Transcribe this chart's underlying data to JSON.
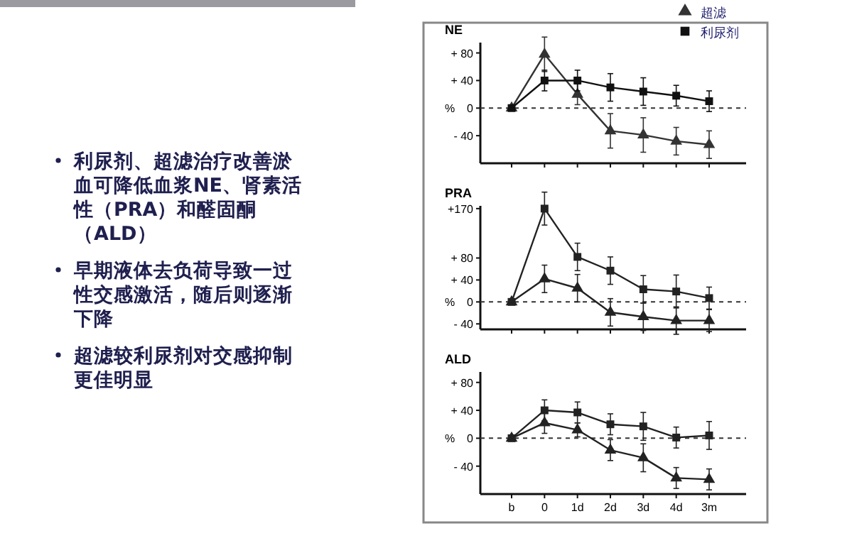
{
  "chart_data": [
    {
      "type": "other",
      "annotations": [
        "利尿剂、超滤治疗改善淤血可降低血浆NE、肾素活性（PRA）和醛固酮（ALD）",
        "早期液体去负荷导致一过性交感激活，随后则逐渐下降",
        "超滤较利尿剂对交感抑制更佳明显"
      ]
    },
    {
      "type": "line",
      "title": "NE",
      "ylabel": "%",
      "categories": [
        null,
        null,
        null,
        null,
        null,
        null,
        null
      ],
      "ylim": [
        -80,
        95
      ],
      "yticks": [
        {
          "value": -40,
          "label": "- 40"
        },
        {
          "value": 0,
          "label": "0"
        },
        {
          "value": 40,
          "label": "+ 40"
        },
        {
          "value": 80,
          "label": "+ 80"
        }
      ],
      "legend": "top right",
      "ref_lines": [
        {
          "axis": "y",
          "value": 0,
          "line_style": "dashed"
        }
      ],
      "series": [
        {
          "name": "超滤",
          "color": "#333333",
          "marker": "triangle",
          "values": [
            0,
            78,
            20,
            -33,
            -39,
            -48,
            -53
          ],
          "errors": [
            null,
            25,
            15,
            25,
            25,
            20,
            20
          ]
        },
        {
          "name": "利尿剂",
          "color": "#111111",
          "marker": "square",
          "values": [
            0,
            40,
            40,
            30,
            24,
            18,
            10
          ],
          "errors": [
            null,
            15,
            15,
            20,
            20,
            15,
            15
          ]
        }
      ]
    },
    {
      "type": "line",
      "title": "PRA",
      "ylabel": "%",
      "categories": [
        null,
        null,
        null,
        null,
        null,
        null,
        null
      ],
      "ylim": [
        -50,
        175
      ],
      "yticks": [
        {
          "value": -40,
          "label": "- 40"
        },
        {
          "value": 0,
          "label": "0"
        },
        {
          "value": 40,
          "label": "+ 40"
        },
        {
          "value": 80,
          "label": "+ 80"
        },
        {
          "value": 170,
          "label": "+170"
        }
      ],
      "ref_lines": [
        {
          "axis": "y",
          "value": 0,
          "line_style": "dashed"
        }
      ],
      "series": [
        {
          "color": "#222222",
          "marker": "triangle",
          "values": [
            0,
            42,
            25,
            -19,
            -27,
            -34,
            -34
          ],
          "errors": [
            null,
            25,
            25,
            25,
            25,
            25,
            20
          ]
        },
        {
          "color": "#222222",
          "marker": "square",
          "values": [
            0,
            170,
            82,
            57,
            23,
            19,
            7
          ],
          "errors": [
            null,
            30,
            25,
            25,
            25,
            30,
            20
          ]
        }
      ]
    },
    {
      "type": "line",
      "title": "ALD",
      "ylabel": "%",
      "categories": [
        "b",
        "0",
        "1d",
        "2d",
        "3d",
        "4d",
        "3m"
      ],
      "ylim": [
        -80,
        95
      ],
      "yticks": [
        {
          "value": -40,
          "label": "- 40"
        },
        {
          "value": 0,
          "label": "0"
        },
        {
          "value": 40,
          "label": "+ 40"
        },
        {
          "value": 80,
          "label": "+ 80"
        }
      ],
      "ref_lines": [
        {
          "axis": "y",
          "value": 0,
          "line_style": "dashed"
        }
      ],
      "series": [
        {
          "color": "#222222",
          "marker": "triangle",
          "values": [
            0,
            22,
            12,
            -17,
            -28,
            -57,
            -59
          ],
          "errors": [
            null,
            15,
            10,
            15,
            20,
            15,
            15
          ]
        },
        {
          "color": "#222222",
          "marker": "square",
          "values": [
            0,
            40,
            37,
            20,
            17,
            1,
            4
          ],
          "errors": [
            null,
            15,
            15,
            15,
            20,
            15,
            20
          ]
        }
      ]
    }
  ]
}
